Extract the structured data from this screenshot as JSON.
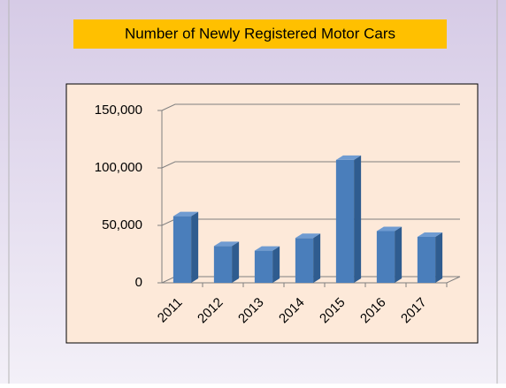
{
  "chart_data": {
    "type": "bar",
    "title": "Number of Newly Registered Motor Cars",
    "categories": [
      "2011",
      "2012",
      "2013",
      "2014",
      "2015",
      "2016",
      "2017"
    ],
    "values": [
      58000,
      32000,
      28000,
      39000,
      107000,
      45000,
      40000
    ],
    "color": "#4a7ebb",
    "ylim": [
      0,
      150000
    ],
    "yticks": [
      0,
      {
        "value": 50000,
        "label": "50,000"
      },
      {
        "value": 100000,
        "label": "100,000"
      },
      {
        "value": 150000,
        "label": "150,000"
      }
    ],
    "grid": true
  }
}
